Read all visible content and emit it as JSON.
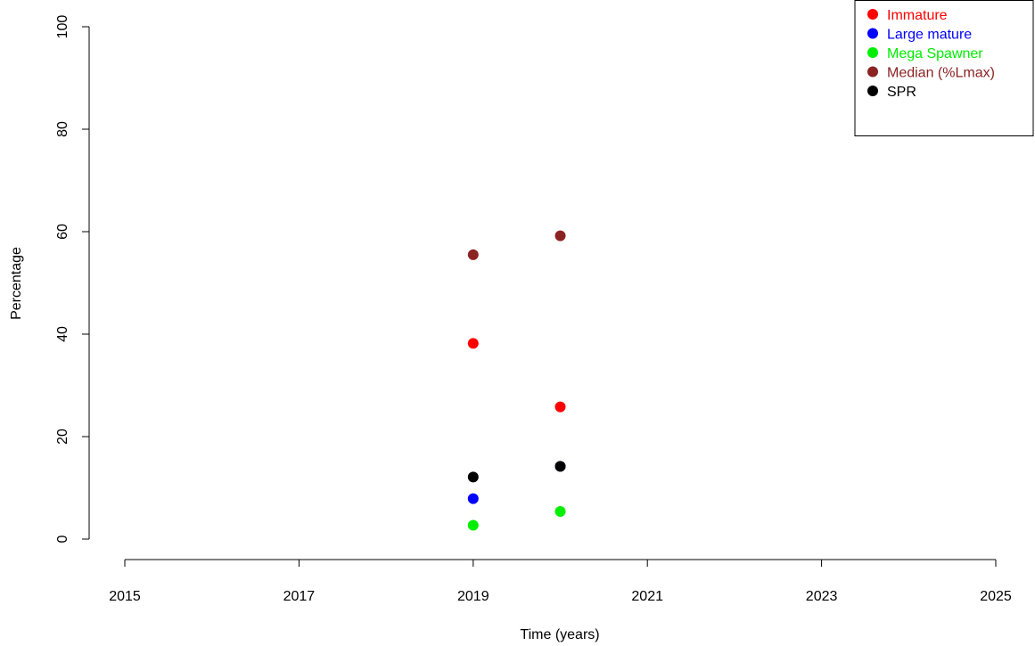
{
  "chart_data": {
    "type": "scatter",
    "xlabel": "Time (years)",
    "ylabel": "Percentage",
    "xlim": [
      2015,
      2025
    ],
    "ylim": [
      0,
      100
    ],
    "xticks": [
      "2015",
      "2017",
      "2019",
      "2021",
      "2023",
      "2025"
    ],
    "yticks": [
      "0",
      "20",
      "40",
      "60",
      "80",
      "100"
    ],
    "legend_position": "top-right",
    "series": [
      {
        "name": "Immature",
        "color": "#ff0000",
        "points": [
          {
            "x": 2019,
            "y": 38.2
          },
          {
            "x": 2020,
            "y": 25.8
          }
        ]
      },
      {
        "name": "Large mature",
        "color": "#0000ff",
        "points": [
          {
            "x": 2019,
            "y": 7.9
          },
          {
            "x": 2020,
            "y": 14.2
          }
        ]
      },
      {
        "name": "Mega Spawner",
        "color": "#00ee00",
        "points": [
          {
            "x": 2019,
            "y": 2.7
          },
          {
            "x": 2020,
            "y": 5.4
          }
        ]
      },
      {
        "name": "Median (%Lmax)",
        "color": "#8b2323",
        "points": [
          {
            "x": 2019,
            "y": 55.5
          },
          {
            "x": 2020,
            "y": 59.2
          }
        ]
      },
      {
        "name": "SPR",
        "color": "#000000",
        "points": [
          {
            "x": 2019,
            "y": 12.1
          },
          {
            "x": 2020,
            "y": 14.2
          }
        ]
      }
    ]
  }
}
